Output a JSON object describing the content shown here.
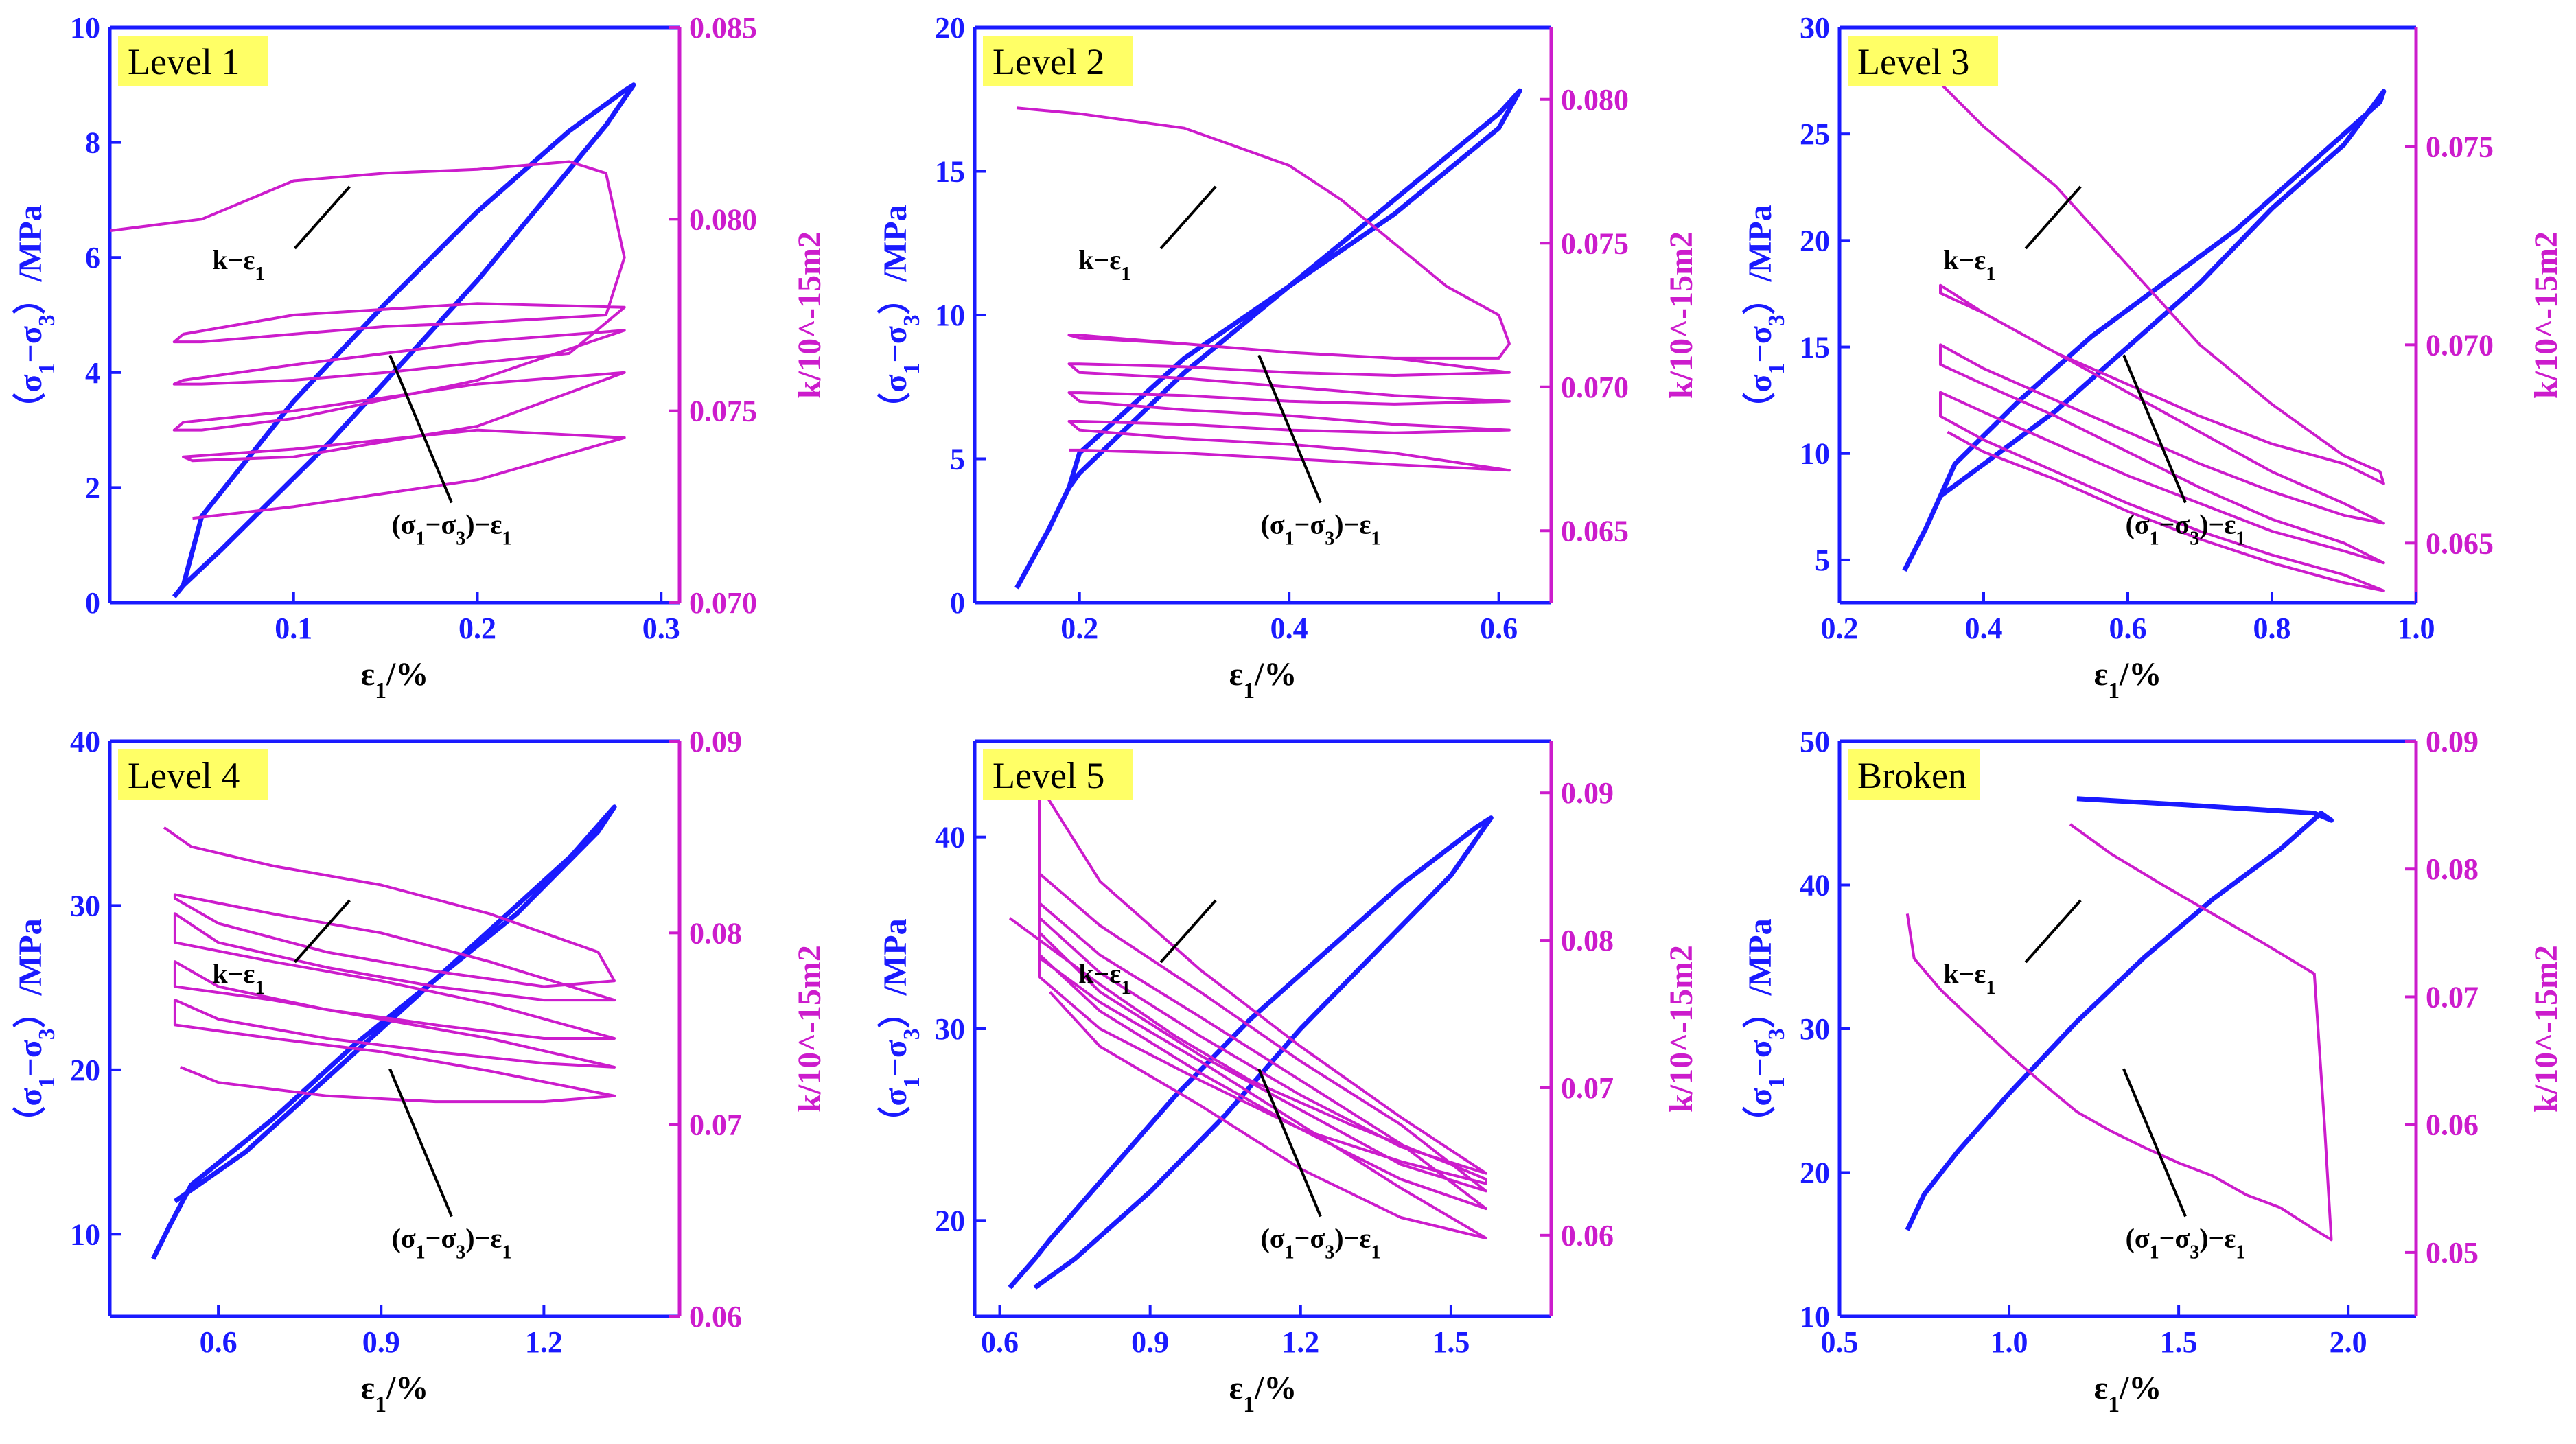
{
  "colors": {
    "stress": "#1a1aff",
    "perm": "#cc1ccc",
    "text": "#000000",
    "label_bg": "#ffff66"
  },
  "common": {
    "xlabel": "ε1/%",
    "ylabel_left": "（σ1−σ3）/MPa",
    "ylabel_right": "k/10^-15m2"
  },
  "chart_data": [
    {
      "type": "line",
      "label": "Level 1",
      "xlim": [
        0.0,
        0.31
      ],
      "ylim_left": [
        0,
        10
      ],
      "ylim_right": [
        0.07,
        0.085
      ],
      "xticks": [
        0.1,
        0.2,
        0.3
      ],
      "yticks_left": [
        0,
        2,
        4,
        6,
        8,
        10
      ],
      "yticks_right": [
        0.07,
        0.075,
        0.08,
        0.085
      ],
      "annotations": {
        "k": "k−ε1",
        "stress": "(σ1−σ3)−ε1"
      },
      "stress": {
        "x": [
          0.035,
          0.04,
          0.05,
          0.1,
          0.15,
          0.2,
          0.25,
          0.28,
          0.285,
          0.27,
          0.2,
          0.12,
          0.06,
          0.04
        ],
        "y": [
          0.1,
          0.3,
          1.5,
          3.5,
          5.2,
          6.8,
          8.2,
          8.9,
          9.0,
          8.3,
          5.6,
          2.8,
          0.9,
          0.3
        ]
      },
      "perm": {
        "x": [
          0.0,
          0.05,
          0.1,
          0.15,
          0.2,
          0.25,
          0.27,
          0.28,
          0.27,
          0.2,
          0.15,
          0.1,
          0.05,
          0.035,
          0.04,
          0.1,
          0.2,
          0.28,
          0.25,
          0.15,
          0.1,
          0.05,
          0.035,
          0.04,
          0.1,
          0.2,
          0.28,
          0.2,
          0.1,
          0.05,
          0.035,
          0.04,
          0.1,
          0.2,
          0.28,
          0.2,
          0.1,
          0.045,
          0.04,
          0.1,
          0.2,
          0.28,
          0.2,
          0.1,
          0.045
        ],
        "y": [
          0.0797,
          0.08,
          0.081,
          0.0812,
          0.0813,
          0.0815,
          0.0812,
          0.079,
          0.0775,
          0.0773,
          0.0772,
          0.077,
          0.0768,
          0.0768,
          0.077,
          0.0775,
          0.0778,
          0.0777,
          0.0765,
          0.076,
          0.0758,
          0.0757,
          0.0757,
          0.0758,
          0.0762,
          0.0768,
          0.0771,
          0.0758,
          0.0748,
          0.0745,
          0.0745,
          0.0747,
          0.075,
          0.0757,
          0.076,
          0.0746,
          0.0738,
          0.0737,
          0.0738,
          0.074,
          0.0745,
          0.0743,
          0.0732,
          0.0725,
          0.0722
        ]
      }
    },
    {
      "type": "line",
      "label": "Level 2",
      "xlim": [
        0.1,
        0.65
      ],
      "ylim_left": [
        0,
        20
      ],
      "ylim_right": [
        0.0625,
        0.0825
      ],
      "xticks": [
        0.2,
        0.4,
        0.6
      ],
      "yticks_left": [
        0,
        5,
        10,
        15,
        20
      ],
      "yticks_right": [
        0.065,
        0.07,
        0.075,
        0.08
      ],
      "annotations": {
        "k": "k−ε1",
        "stress": "(σ1−σ3)−ε1"
      },
      "stress": {
        "x": [
          0.14,
          0.17,
          0.19,
          0.2,
          0.3,
          0.4,
          0.5,
          0.6,
          0.62,
          0.6,
          0.5,
          0.4,
          0.3,
          0.2,
          0.19
        ],
        "y": [
          0.5,
          2.5,
          4.0,
          5.2,
          8.5,
          11.0,
          13.5,
          16.5,
          17.8,
          17.0,
          14.0,
          11.0,
          8.0,
          4.5,
          4.0
        ]
      },
      "perm": {
        "x": [
          0.14,
          0.2,
          0.3,
          0.4,
          0.45,
          0.5,
          0.55,
          0.6,
          0.61,
          0.6,
          0.5,
          0.4,
          0.3,
          0.2,
          0.19,
          0.2,
          0.3,
          0.4,
          0.5,
          0.61,
          0.5,
          0.4,
          0.3,
          0.2,
          0.19,
          0.2,
          0.3,
          0.4,
          0.5,
          0.61,
          0.5,
          0.4,
          0.3,
          0.2,
          0.19,
          0.2,
          0.3,
          0.4,
          0.5,
          0.61,
          0.5,
          0.4,
          0.3,
          0.2,
          0.19,
          0.2,
          0.3,
          0.4,
          0.5,
          0.61,
          0.5,
          0.4,
          0.3,
          0.2,
          0.19
        ],
        "y": [
          0.0797,
          0.0795,
          0.079,
          0.0777,
          0.0765,
          0.075,
          0.0735,
          0.0725,
          0.0715,
          0.071,
          0.071,
          0.0712,
          0.0715,
          0.0718,
          0.0718,
          0.0717,
          0.0715,
          0.0712,
          0.071,
          0.0705,
          0.0704,
          0.0705,
          0.0707,
          0.0708,
          0.0708,
          0.0705,
          0.0703,
          0.07,
          0.0697,
          0.0695,
          0.0694,
          0.0695,
          0.0697,
          0.0698,
          0.0698,
          0.0695,
          0.0692,
          0.069,
          0.0687,
          0.0685,
          0.0684,
          0.0685,
          0.0687,
          0.0688,
          0.0688,
          0.0685,
          0.0682,
          0.068,
          0.0677,
          0.0671,
          0.0673,
          0.0675,
          0.0677,
          0.0678,
          0.0678
        ]
      }
    },
    {
      "type": "line",
      "label": "Level 3",
      "xlim": [
        0.2,
        1.0
      ],
      "ylim_left": [
        3,
        30
      ],
      "ylim_right": [
        0.0635,
        0.078
      ],
      "xticks": [
        0.2,
        0.4,
        0.6,
        0.8,
        1.0
      ],
      "yticks_left": [
        5,
        10,
        15,
        20,
        25,
        30
      ],
      "yticks_right": [
        0.065,
        0.07,
        0.075
      ],
      "annotations": {
        "k": "k−ε1",
        "stress": "(σ1−σ3)−ε1"
      },
      "stress": {
        "x": [
          0.29,
          0.32,
          0.34,
          0.36,
          0.45,
          0.55,
          0.65,
          0.75,
          0.85,
          0.95,
          0.955,
          0.9,
          0.8,
          0.7,
          0.6,
          0.5,
          0.4,
          0.34
        ],
        "y": [
          4.5,
          6.5,
          8.0,
          9.5,
          12.5,
          15.5,
          18.0,
          20.5,
          23.5,
          26.5,
          27.0,
          24.5,
          21.5,
          18.0,
          15.0,
          12.0,
          9.5,
          8.0
        ]
      },
      "perm": {
        "x": [
          0.29,
          0.4,
          0.5,
          0.6,
          0.7,
          0.8,
          0.9,
          0.95,
          0.955,
          0.9,
          0.8,
          0.7,
          0.6,
          0.5,
          0.4,
          0.34,
          0.34,
          0.4,
          0.5,
          0.6,
          0.7,
          0.8,
          0.9,
          0.955,
          0.9,
          0.8,
          0.7,
          0.6,
          0.5,
          0.4,
          0.34,
          0.34,
          0.4,
          0.5,
          0.6,
          0.7,
          0.8,
          0.9,
          0.955,
          0.9,
          0.8,
          0.7,
          0.6,
          0.5,
          0.4,
          0.34,
          0.34,
          0.4,
          0.5,
          0.6,
          0.7,
          0.8,
          0.9,
          0.955,
          0.9,
          0.8,
          0.7,
          0.6,
          0.5,
          0.4,
          0.35
        ],
        "y": [
          0.0775,
          0.0755,
          0.074,
          0.072,
          0.07,
          0.0685,
          0.0672,
          0.0668,
          0.0665,
          0.067,
          0.0675,
          0.0682,
          0.069,
          0.0698,
          0.0708,
          0.0715,
          0.0713,
          0.0708,
          0.0698,
          0.0688,
          0.0678,
          0.0668,
          0.066,
          0.0655,
          0.0657,
          0.0663,
          0.067,
          0.0678,
          0.0686,
          0.0694,
          0.07,
          0.0695,
          0.069,
          0.0682,
          0.0673,
          0.0664,
          0.0656,
          0.065,
          0.0645,
          0.0648,
          0.0653,
          0.066,
          0.0667,
          0.0675,
          0.0683,
          0.0688,
          0.0682,
          0.0676,
          0.0668,
          0.066,
          0.0653,
          0.0647,
          0.0642,
          0.0638,
          0.064,
          0.0645,
          0.0651,
          0.0658,
          0.0666,
          0.0673,
          0.0678
        ]
      }
    },
    {
      "type": "line",
      "label": "Level 4",
      "xlim": [
        0.4,
        1.45
      ],
      "ylim_left": [
        5,
        40
      ],
      "ylim_right": [
        0.06,
        0.09
      ],
      "xticks": [
        0.6,
        0.9,
        1.2
      ],
      "yticks_left": [
        10,
        20,
        30,
        40
      ],
      "yticks_right": [
        0.06,
        0.07,
        0.08,
        0.09
      ],
      "annotations": {
        "k": "k−ε1",
        "stress": "(σ1−σ3)−ε1"
      },
      "stress": {
        "x": [
          0.48,
          0.51,
          0.55,
          0.7,
          0.85,
          1.0,
          1.15,
          1.3,
          1.33,
          1.25,
          1.1,
          0.95,
          0.8,
          0.65,
          0.52
        ],
        "y": [
          8.5,
          10.5,
          13.0,
          17.0,
          21.5,
          25.5,
          29.5,
          34.5,
          36.0,
          33.0,
          28.5,
          24.0,
          19.5,
          15.0,
          12.0
        ]
      },
      "perm": {
        "x": [
          0.5,
          0.55,
          0.7,
          0.9,
          1.1,
          1.3,
          1.33,
          1.2,
          1.0,
          0.8,
          0.6,
          0.52,
          0.52,
          0.7,
          0.9,
          1.1,
          1.33,
          1.2,
          1.0,
          0.8,
          0.6,
          0.52,
          0.52,
          0.7,
          0.9,
          1.1,
          1.33,
          1.2,
          1.0,
          0.8,
          0.6,
          0.52,
          0.52,
          0.7,
          0.9,
          1.1,
          1.33,
          1.2,
          1.0,
          0.8,
          0.6,
          0.52,
          0.52,
          0.7,
          0.9,
          1.1,
          1.33,
          1.2,
          1.0,
          0.8,
          0.6,
          0.53
        ],
        "y": [
          0.0855,
          0.0845,
          0.0835,
          0.0825,
          0.081,
          0.079,
          0.0775,
          0.0772,
          0.078,
          0.079,
          0.0805,
          0.0818,
          0.082,
          0.081,
          0.08,
          0.0785,
          0.0765,
          0.0765,
          0.0772,
          0.0782,
          0.0795,
          0.081,
          0.0795,
          0.0785,
          0.0775,
          0.0763,
          0.0745,
          0.0745,
          0.0752,
          0.076,
          0.0772,
          0.0785,
          0.0772,
          0.0765,
          0.0755,
          0.0745,
          0.073,
          0.0732,
          0.0738,
          0.0745,
          0.0755,
          0.0765,
          0.0752,
          0.0745,
          0.0738,
          0.0728,
          0.0715,
          0.0712,
          0.0712,
          0.0715,
          0.0722,
          0.073
        ]
      }
    },
    {
      "type": "line",
      "label": "Level 5",
      "xlim": [
        0.55,
        1.7
      ],
      "ylim_left": [
        15,
        45
      ],
      "ylim_right": [
        0.0545,
        0.0935
      ],
      "xticks": [
        0.6,
        0.9,
        1.2,
        1.5
      ],
      "yticks_left": [
        20,
        30,
        40
      ],
      "yticks_right": [
        0.06,
        0.07,
        0.08,
        0.09
      ],
      "annotations": {
        "k": "k−ε1",
        "stress": "(σ1−σ3)−ε1"
      },
      "stress": {
        "x": [
          0.62,
          0.67,
          0.7,
          0.8,
          0.95,
          1.1,
          1.25,
          1.4,
          1.55,
          1.58,
          1.5,
          1.35,
          1.2,
          1.05,
          0.9,
          0.75,
          0.67
        ],
        "y": [
          16.5,
          18.0,
          19.0,
          22.0,
          26.5,
          30.5,
          34.0,
          37.5,
          40.5,
          41.0,
          38.0,
          34.0,
          30.0,
          25.5,
          21.5,
          18.0,
          16.5
        ]
      },
      "perm": {
        "x": [
          0.62,
          0.7,
          0.8,
          0.95,
          1.1,
          1.3,
          1.5,
          1.57,
          1.57,
          1.4,
          1.2,
          1.0,
          0.8,
          0.68,
          0.68,
          0.8,
          1.0,
          1.2,
          1.4,
          1.57,
          1.4,
          1.2,
          1.0,
          0.8,
          0.68,
          0.68,
          0.8,
          1.0,
          1.2,
          1.4,
          1.57,
          1.4,
          1.2,
          1.0,
          0.8,
          0.68,
          0.68,
          0.8,
          1.0,
          1.2,
          1.4,
          1.57,
          1.4,
          1.2,
          1.0,
          0.8,
          0.68,
          0.68,
          0.8,
          1.0,
          1.2,
          1.4,
          1.57,
          1.4,
          1.2,
          1.0,
          0.8,
          0.7
        ],
        "y": [
          0.0815,
          0.0795,
          0.077,
          0.0735,
          0.0705,
          0.0675,
          0.0648,
          0.0638,
          0.0635,
          0.065,
          0.0672,
          0.0705,
          0.074,
          0.0775,
          0.0905,
          0.084,
          0.078,
          0.0728,
          0.068,
          0.0642,
          0.066,
          0.0695,
          0.0735,
          0.0778,
          0.0815,
          0.0845,
          0.081,
          0.0765,
          0.0718,
          0.0675,
          0.063,
          0.0648,
          0.0685,
          0.0722,
          0.0765,
          0.0805,
          0.0825,
          0.079,
          0.0748,
          0.0705,
          0.0662,
          0.0618,
          0.0638,
          0.0672,
          0.071,
          0.0752,
          0.079,
          0.0788,
          0.0758,
          0.0718,
          0.0675,
          0.0632,
          0.0598,
          0.0612,
          0.0645,
          0.0688,
          0.0728,
          0.0765
        ]
      }
    },
    {
      "type": "line",
      "label": "Broken",
      "xlim": [
        0.5,
        2.2
      ],
      "ylim_left": [
        10,
        50
      ],
      "ylim_right": [
        0.045,
        0.09
      ],
      "xticks": [
        0.5,
        1.0,
        1.5,
        2.0
      ],
      "yticks_left": [
        10,
        20,
        30,
        40,
        50
      ],
      "yticks_right": [
        0.05,
        0.06,
        0.07,
        0.08,
        0.09
      ],
      "annotations": {
        "k": "k−ε1",
        "stress": "(σ1−σ3)−ε1"
      },
      "stress": {
        "x": [
          0.7,
          0.75,
          0.85,
          1.0,
          1.2,
          1.4,
          1.6,
          1.8,
          1.92,
          1.95,
          1.9,
          1.7,
          1.5,
          1.2
        ],
        "y": [
          16.0,
          18.5,
          21.5,
          25.5,
          30.5,
          35.0,
          39.0,
          42.5,
          45.0,
          44.5,
          45.0,
          45.3,
          45.6,
          46.0
        ]
      },
      "perm": {
        "x": [
          0.7,
          0.72,
          0.8,
          0.9,
          1.0,
          1.1,
          1.2,
          1.3,
          1.4,
          1.5,
          1.6,
          1.7,
          1.8,
          1.9,
          1.95,
          1.93,
          1.9,
          1.75,
          1.6,
          1.45,
          1.3,
          1.18
        ],
        "y": [
          0.0765,
          0.073,
          0.0705,
          0.068,
          0.0655,
          0.0632,
          0.061,
          0.0595,
          0.0582,
          0.057,
          0.056,
          0.0545,
          0.0535,
          0.0518,
          0.051,
          0.06,
          0.0718,
          0.0742,
          0.0765,
          0.0788,
          0.0812,
          0.0835
        ]
      }
    }
  ]
}
